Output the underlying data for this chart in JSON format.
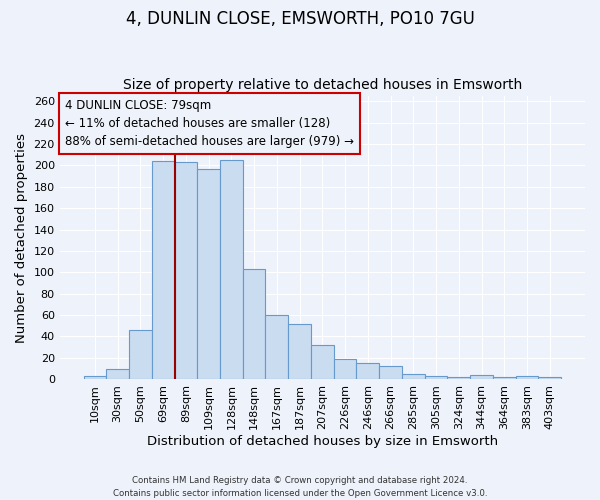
{
  "title": "4, DUNLIN CLOSE, EMSWORTH, PO10 7GU",
  "subtitle": "Size of property relative to detached houses in Emsworth",
  "xlabel": "Distribution of detached houses by size in Emsworth",
  "ylabel": "Number of detached properties",
  "bar_labels": [
    "10sqm",
    "30sqm",
    "50sqm",
    "69sqm",
    "89sqm",
    "109sqm",
    "128sqm",
    "148sqm",
    "167sqm",
    "187sqm",
    "207sqm",
    "226sqm",
    "246sqm",
    "266sqm",
    "285sqm",
    "305sqm",
    "324sqm",
    "344sqm",
    "364sqm",
    "383sqm",
    "403sqm"
  ],
  "bar_values": [
    3,
    9,
    46,
    204,
    203,
    197,
    205,
    103,
    60,
    52,
    32,
    19,
    15,
    12,
    5,
    3,
    2,
    4,
    2,
    3,
    2
  ],
  "bar_color": "#c9dcf0",
  "bar_edge_color": "#6699cc",
  "vline_index": 4,
  "marker_label": "4 DUNLIN CLOSE: 79sqm",
  "annotation_line1": "← 11% of detached houses are smaller (128)",
  "annotation_line2": "88% of semi-detached houses are larger (979) →",
  "vline_color": "#990000",
  "box_edge_color": "#cc0000",
  "ylim_max": 265,
  "yticks": [
    0,
    20,
    40,
    60,
    80,
    100,
    120,
    140,
    160,
    180,
    200,
    220,
    240,
    260
  ],
  "footnote1": "Contains HM Land Registry data © Crown copyright and database right 2024.",
  "footnote2": "Contains public sector information licensed under the Open Government Licence v3.0.",
  "bg_color": "#eef2fa",
  "title_fontsize": 12,
  "subtitle_fontsize": 10,
  "axis_label_fontsize": 9.5,
  "tick_fontsize": 8,
  "annotation_fontsize": 8.5
}
